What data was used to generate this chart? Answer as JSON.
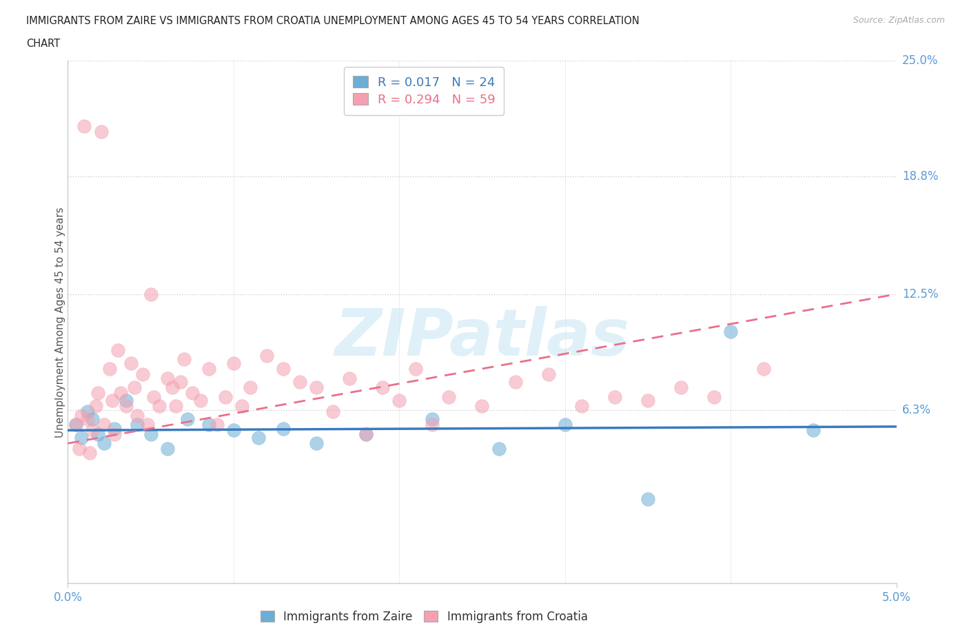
{
  "title_line1": "IMMIGRANTS FROM ZAIRE VS IMMIGRANTS FROM CROATIA UNEMPLOYMENT AMONG AGES 45 TO 54 YEARS CORRELATION",
  "title_line2": "CHART",
  "source": "Source: ZipAtlas.com",
  "ylabel": "Unemployment Among Ages 45 to 54 years",
  "x_min": 0.0,
  "x_max": 5.0,
  "y_min": -3.0,
  "y_max": 25.0,
  "x_tick_labels": [
    "0.0%",
    "5.0%"
  ],
  "y_ticks": [
    6.3,
    12.5,
    18.8,
    25.0
  ],
  "y_tick_labels": [
    "6.3%",
    "12.5%",
    "18.8%",
    "25.0%"
  ],
  "zaire_color": "#6baed6",
  "croatia_color": "#f4a0b0",
  "zaire_line_color": "#3a7abf",
  "croatia_line_color": "#e8708a",
  "zaire_R": 0.017,
  "zaire_N": 24,
  "croatia_R": 0.294,
  "croatia_N": 59,
  "legend_label_zaire": "Immigrants from Zaire",
  "legend_label_croatia": "Immigrants from Croatia",
  "background_color": "#ffffff",
  "watermark_text": "ZIPatlas",
  "zaire_scatter_x": [
    0.05,
    0.08,
    0.12,
    0.15,
    0.18,
    0.22,
    0.28,
    0.35,
    0.42,
    0.5,
    0.6,
    0.72,
    0.85,
    1.0,
    1.15,
    1.3,
    1.5,
    1.8,
    2.2,
    2.6,
    3.0,
    3.5,
    4.0,
    4.5
  ],
  "zaire_scatter_y": [
    5.5,
    4.8,
    6.2,
    5.8,
    5.0,
    4.5,
    5.3,
    6.8,
    5.5,
    5.0,
    4.2,
    5.8,
    5.5,
    5.2,
    4.8,
    5.3,
    4.5,
    5.0,
    5.8,
    4.2,
    5.5,
    1.5,
    10.5,
    5.2
  ],
  "croatia_scatter_x": [
    0.05,
    0.07,
    0.08,
    0.1,
    0.12,
    0.13,
    0.15,
    0.17,
    0.18,
    0.2,
    0.22,
    0.25,
    0.27,
    0.28,
    0.3,
    0.32,
    0.35,
    0.38,
    0.4,
    0.42,
    0.45,
    0.48,
    0.5,
    0.52,
    0.55,
    0.6,
    0.63,
    0.65,
    0.68,
    0.7,
    0.75,
    0.8,
    0.85,
    0.9,
    0.95,
    1.0,
    1.05,
    1.1,
    1.2,
    1.3,
    1.4,
    1.5,
    1.6,
    1.7,
    1.8,
    1.9,
    2.0,
    2.1,
    2.2,
    2.3,
    2.5,
    2.7,
    2.9,
    3.1,
    3.3,
    3.5,
    3.7,
    3.9,
    4.2
  ],
  "croatia_scatter_y": [
    5.5,
    4.2,
    6.0,
    21.5,
    5.8,
    4.0,
    5.2,
    6.5,
    7.2,
    21.2,
    5.5,
    8.5,
    6.8,
    5.0,
    9.5,
    7.2,
    6.5,
    8.8,
    7.5,
    6.0,
    8.2,
    5.5,
    12.5,
    7.0,
    6.5,
    8.0,
    7.5,
    6.5,
    7.8,
    9.0,
    7.2,
    6.8,
    8.5,
    5.5,
    7.0,
    8.8,
    6.5,
    7.5,
    9.2,
    8.5,
    7.8,
    7.5,
    6.2,
    8.0,
    5.0,
    7.5,
    6.8,
    8.5,
    5.5,
    7.0,
    6.5,
    7.8,
    8.2,
    6.5,
    7.0,
    6.8,
    7.5,
    7.0,
    8.5
  ],
  "zaire_trend_x": [
    0.0,
    5.0
  ],
  "zaire_trend_y": [
    5.2,
    5.4
  ],
  "croatia_trend_x": [
    0.0,
    5.0
  ],
  "croatia_trend_y": [
    4.5,
    12.5
  ]
}
